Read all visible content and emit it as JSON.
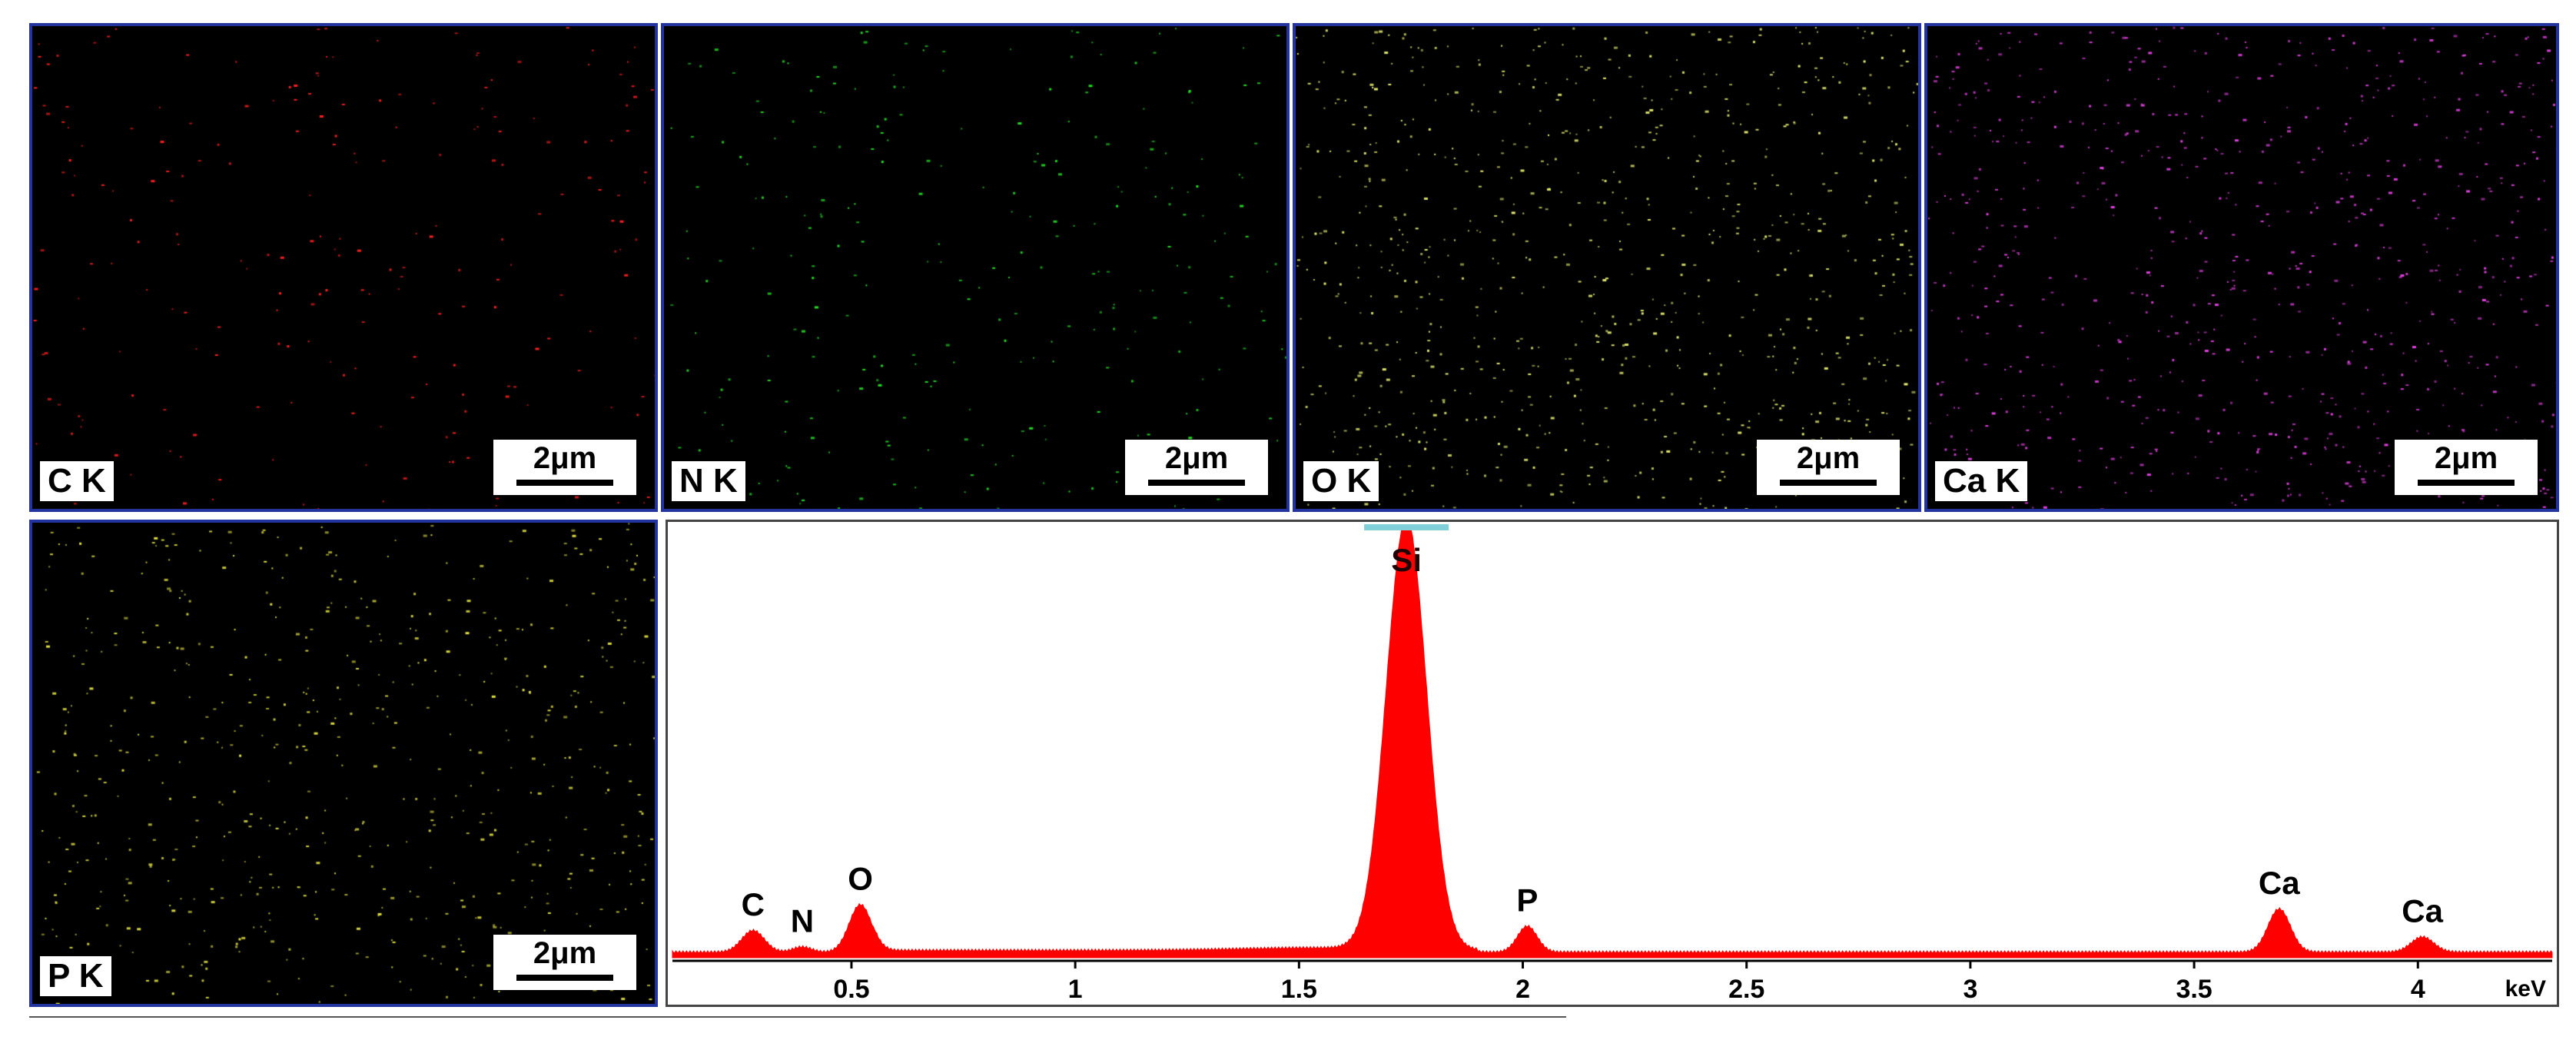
{
  "maps": [
    {
      "label": "C K",
      "scale": "2μm",
      "color": "#ff2020",
      "density": 0.45
    },
    {
      "label": "N K",
      "scale": "2μm",
      "color": "#22e022",
      "density": 0.55
    },
    {
      "label": "O K",
      "scale": "2μm",
      "color": "#e6ee70",
      "density": 1.6
    },
    {
      "label": "Ca K",
      "scale": "2μm",
      "color": "#e040e0",
      "density": 1.5
    },
    {
      "label": "P K",
      "scale": "2μm",
      "color": "#e0e040",
      "density": 1.2
    }
  ],
  "chart_data": {
    "type": "area",
    "title": "",
    "xlabel": "keV",
    "ylabel": "",
    "xlim": [
      0.1,
      4.3
    ],
    "x_ticks": [
      "0.5",
      "1",
      "1.5",
      "2",
      "2.5",
      "3",
      "3.5",
      "4"
    ],
    "grid": false,
    "series_color": "#ff0000",
    "peaks": [
      {
        "label": "C",
        "x": 0.28,
        "height": 0.05
      },
      {
        "label": "N",
        "x": 0.39,
        "height": 0.012
      },
      {
        "label": "O",
        "x": 0.52,
        "height": 0.11
      },
      {
        "label": "Si",
        "x": 1.74,
        "height": 1.0
      },
      {
        "label": "P",
        "x": 2.01,
        "height": 0.06
      },
      {
        "label": "Ca",
        "x": 3.69,
        "height": 0.1
      },
      {
        "label": "Ca",
        "x": 4.01,
        "height": 0.035
      }
    ]
  }
}
